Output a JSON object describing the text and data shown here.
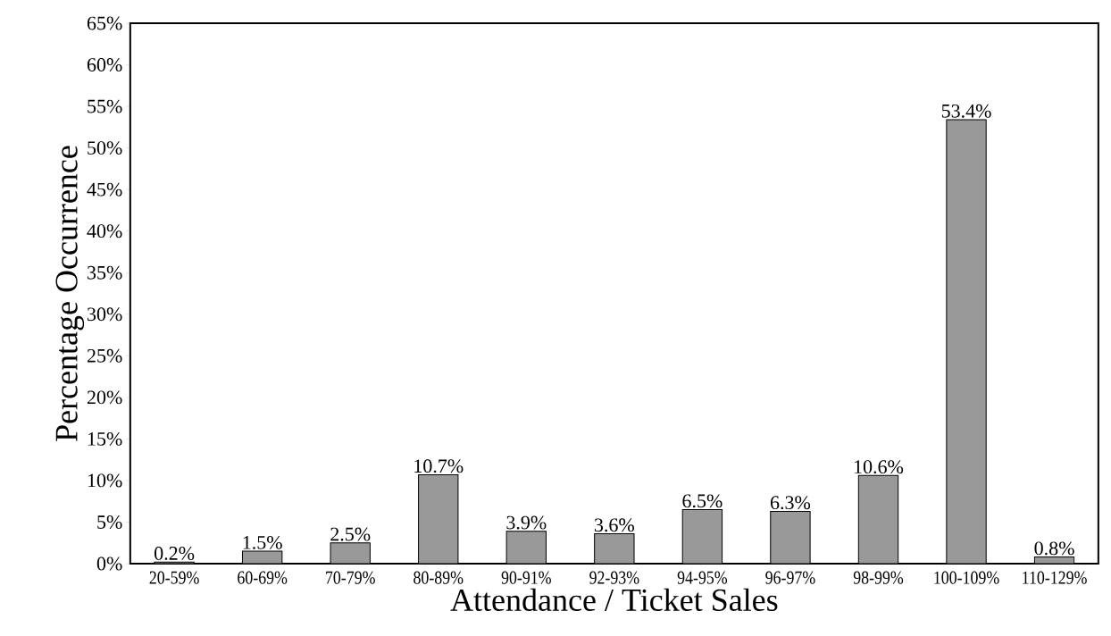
{
  "chart_data": {
    "type": "bar",
    "xlabel": "Attendance / Ticket Sales",
    "ylabel": "Percentage Occurrence",
    "categories": [
      "20-59%",
      "60-69%",
      "70-79%",
      "80-89%",
      "90-91%",
      "92-93%",
      "94-95%",
      "96-97%",
      "98-99%",
      "100-109%",
      "110-129%"
    ],
    "values": [
      0.2,
      1.5,
      2.5,
      10.7,
      3.9,
      3.6,
      6.5,
      6.3,
      10.6,
      53.4,
      0.8
    ],
    "value_labels": [
      "0.2%",
      "1.5%",
      "2.5%",
      "10.7%",
      "3.9%",
      "3.6%",
      "6.5%",
      "6.3%",
      "10.6%",
      "53.4%",
      "0.8%"
    ],
    "color": "#999999",
    "ylim": [
      0,
      65
    ],
    "yticks": [
      {
        "value": 0,
        "label": "0%"
      },
      {
        "value": 5,
        "label": "5%"
      },
      {
        "value": 10,
        "label": "10%"
      },
      {
        "value": 15,
        "label": "15%"
      },
      {
        "value": 20,
        "label": "20%"
      },
      {
        "value": 25,
        "label": "25%"
      },
      {
        "value": 30,
        "label": "30%"
      },
      {
        "value": 35,
        "label": "35%"
      },
      {
        "value": 40,
        "label": "40%"
      },
      {
        "value": 45,
        "label": "45%"
      },
      {
        "value": 50,
        "label": "50%"
      },
      {
        "value": 55,
        "label": "55%"
      },
      {
        "value": 60,
        "label": "60%"
      },
      {
        "value": 65,
        "label": "65%"
      }
    ]
  }
}
